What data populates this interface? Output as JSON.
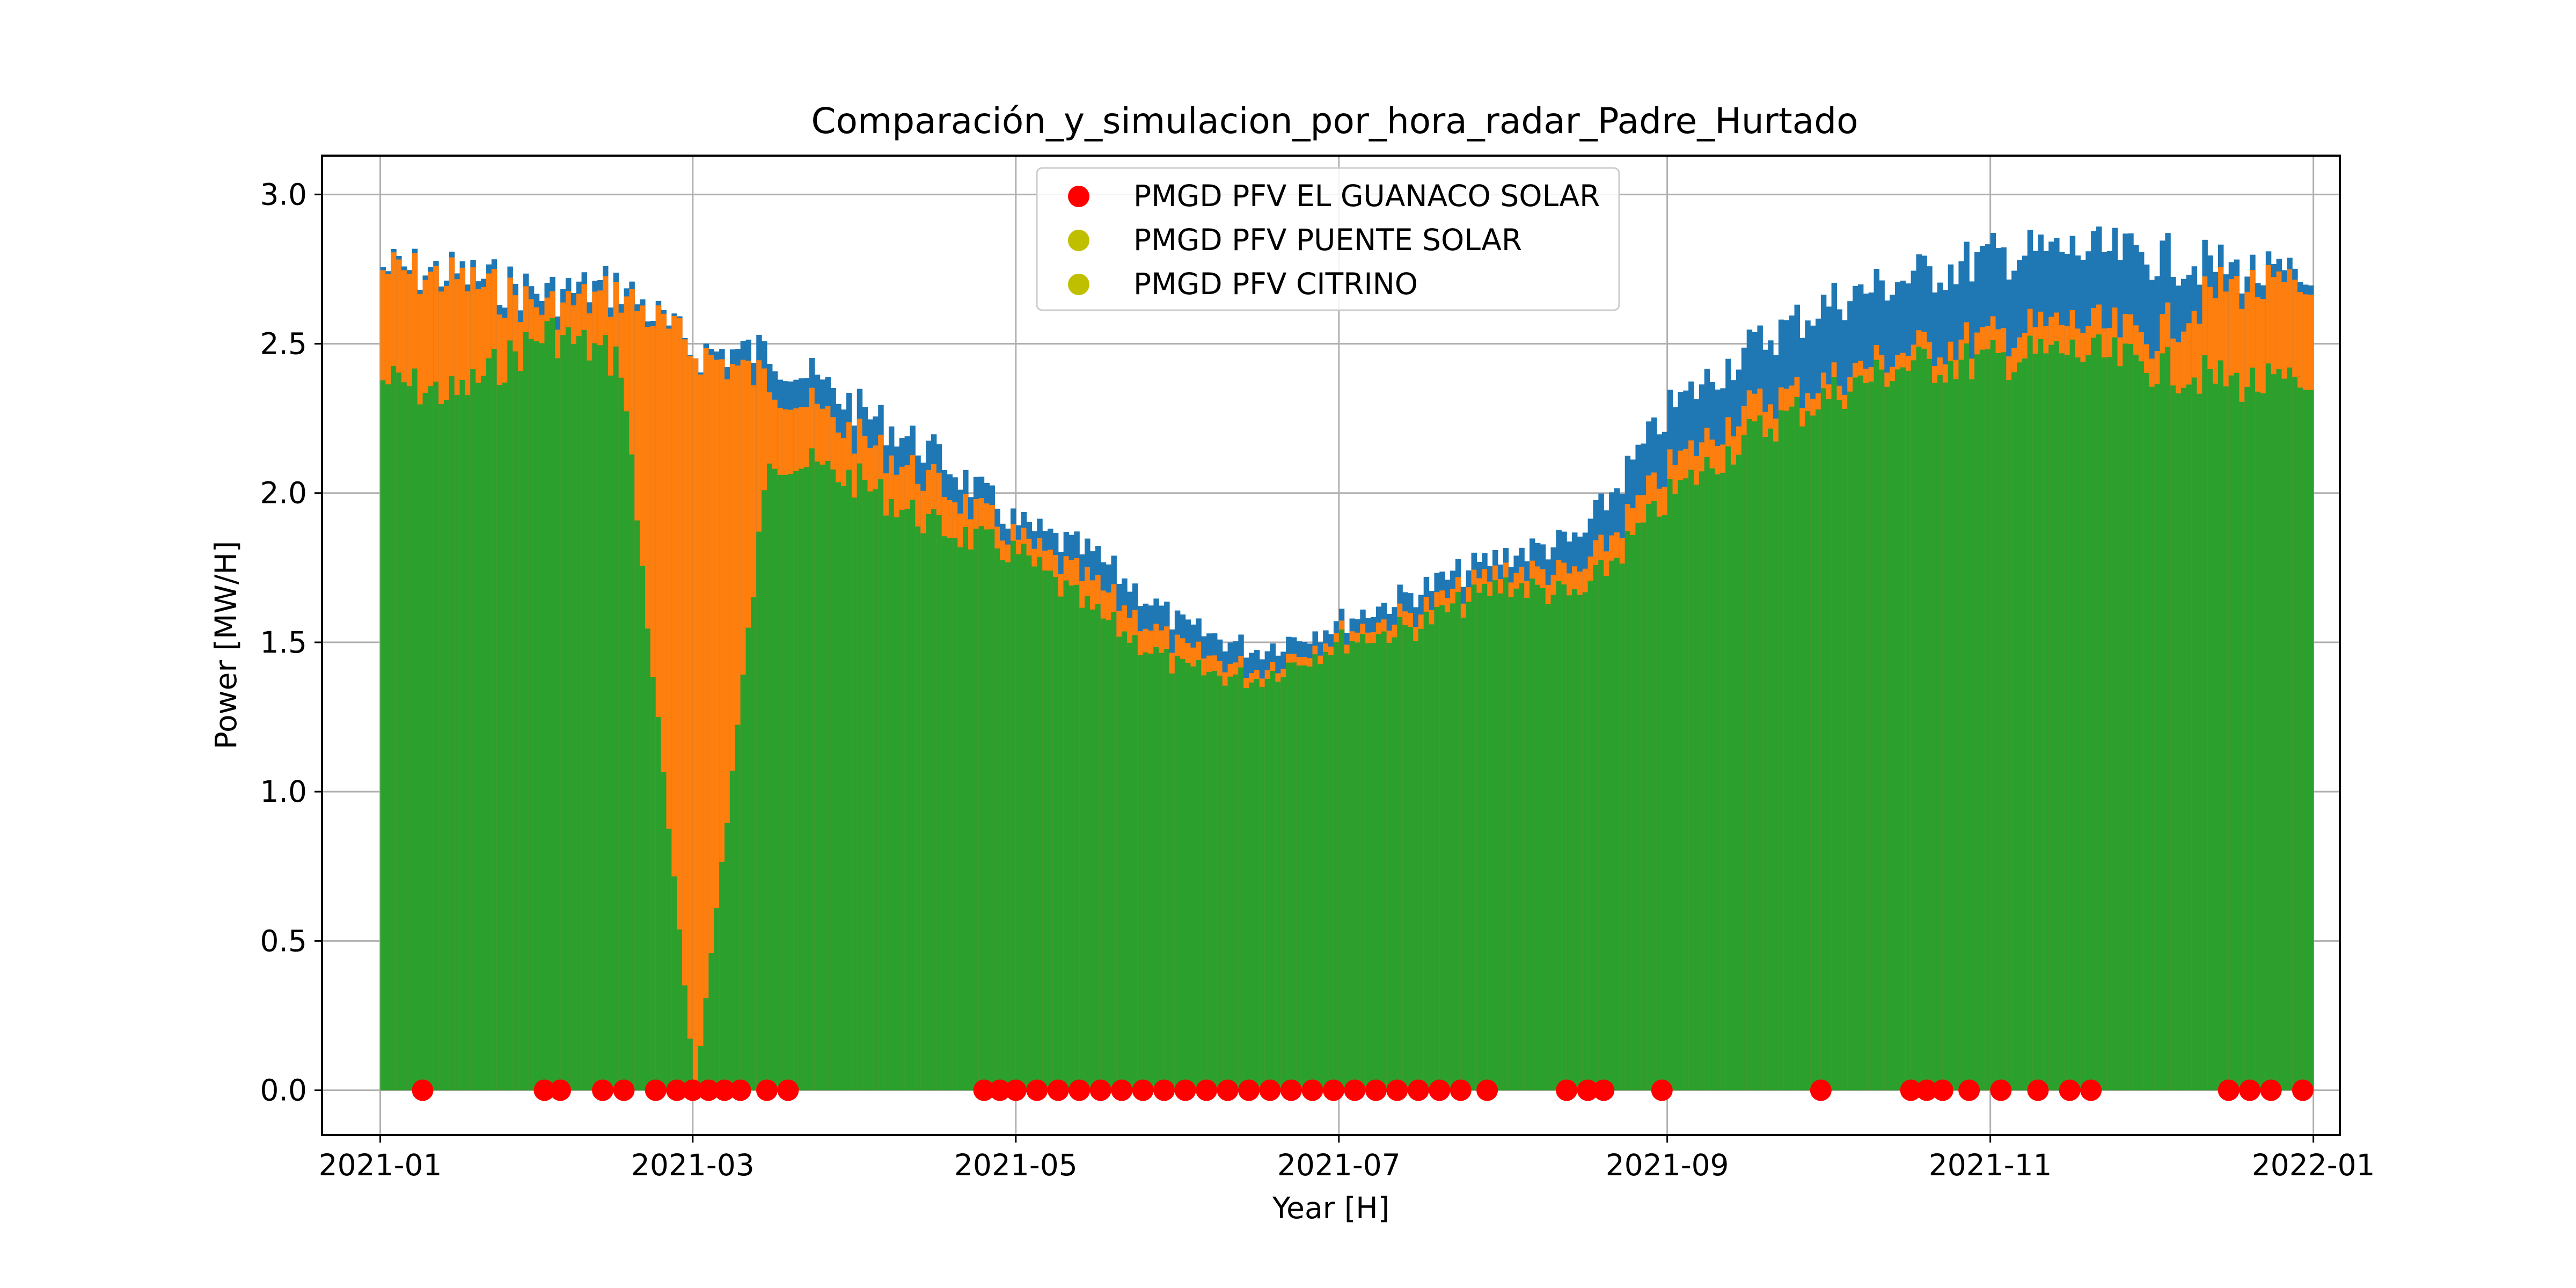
{
  "chart_data": {
    "type": "bar",
    "title": "Comparación_y_simulacion_por_hora_radar_Padre_Hurtado",
    "xlabel": "Year [H]",
    "ylabel": "Power [MW/H]",
    "xlim": [
      "2020-12-21",
      "2022-01-06"
    ],
    "ylim": [
      -0.15,
      3.13
    ],
    "x_ticks": [
      "2021-01",
      "2021-03",
      "2021-05",
      "2021-07",
      "2021-09",
      "2021-11",
      "2022-01"
    ],
    "y_ticks": [
      "0.0",
      "0.5",
      "1.0",
      "1.5",
      "2.0",
      "2.5",
      "3.0"
    ],
    "grid": true,
    "legend_placement": "upper center",
    "series": [
      {
        "name": "PMGD PFV EL GUANACO SOLAR",
        "kind": "scatter",
        "color": "#ff0000",
        "note_values": "hourly values; red markers visible only near 0.0 on visible dates",
        "points": [
          [
            "2021-01-09",
            0.0
          ],
          [
            "2021-02-01",
            0.0
          ],
          [
            "2021-02-04",
            0.0
          ],
          [
            "2021-02-12",
            0.0
          ],
          [
            "2021-02-16",
            0.0
          ],
          [
            "2021-02-22",
            0.0
          ],
          [
            "2021-02-26",
            0.0
          ],
          [
            "2021-03-01",
            0.0
          ],
          [
            "2021-03-04",
            0.0
          ],
          [
            "2021-03-07",
            0.0
          ],
          [
            "2021-03-10",
            0.0
          ],
          [
            "2021-03-15",
            0.0
          ],
          [
            "2021-03-19",
            0.0
          ],
          [
            "2021-04-25",
            0.0
          ],
          [
            "2021-04-28",
            0.0
          ],
          [
            "2021-05-01",
            0.0
          ],
          [
            "2021-05-05",
            0.0
          ],
          [
            "2021-05-09",
            0.0
          ],
          [
            "2021-05-13",
            0.0
          ],
          [
            "2021-05-17",
            0.0
          ],
          [
            "2021-05-21",
            0.0
          ],
          [
            "2021-05-25",
            0.0
          ],
          [
            "2021-05-29",
            0.0
          ],
          [
            "2021-06-02",
            0.0
          ],
          [
            "2021-06-06",
            0.0
          ],
          [
            "2021-06-10",
            0.0
          ],
          [
            "2021-06-14",
            0.0
          ],
          [
            "2021-06-18",
            0.0
          ],
          [
            "2021-06-22",
            0.0
          ],
          [
            "2021-06-26",
            0.0
          ],
          [
            "2021-06-30",
            0.0
          ],
          [
            "2021-07-04",
            0.0
          ],
          [
            "2021-07-08",
            0.0
          ],
          [
            "2021-07-12",
            0.0
          ],
          [
            "2021-07-16",
            0.0
          ],
          [
            "2021-07-20",
            0.0
          ],
          [
            "2021-07-24",
            0.0
          ],
          [
            "2021-07-29",
            0.0
          ],
          [
            "2021-08-13",
            0.0
          ],
          [
            "2021-08-17",
            0.0
          ],
          [
            "2021-08-20",
            0.0
          ],
          [
            "2021-08-31",
            0.0
          ],
          [
            "2021-09-30",
            0.0
          ],
          [
            "2021-10-17",
            0.0
          ],
          [
            "2021-10-20",
            0.0
          ],
          [
            "2021-10-23",
            0.0
          ],
          [
            "2021-10-28",
            0.0
          ],
          [
            "2021-11-03",
            0.0
          ],
          [
            "2021-11-10",
            0.0
          ],
          [
            "2021-11-16",
            0.0
          ],
          [
            "2021-11-20",
            0.0
          ],
          [
            "2021-12-16",
            0.0
          ],
          [
            "2021-12-20",
            0.0
          ],
          [
            "2021-12-24",
            0.0
          ],
          [
            "2021-12-30",
            0.0
          ]
        ]
      },
      {
        "name": "PMGD PFV PUENTE SOLAR",
        "kind": "scatter",
        "color": "#bfbf00",
        "note_values": "hourly values rendered as dense stacked bars (blue/orange/green) in the original",
        "bar_color": "#1f77b4",
        "daily_peak_envelope": [
          [
            "2021-01-01",
            2.84
          ],
          [
            "2021-01-15",
            2.82
          ],
          [
            "2021-02-01",
            2.75
          ],
          [
            "2021-02-15",
            2.78
          ],
          [
            "2021-03-01",
            2.55
          ],
          [
            "2021-03-15",
            2.55
          ],
          [
            "2021-04-01",
            2.35
          ],
          [
            "2021-04-15",
            2.2
          ],
          [
            "2021-05-01",
            1.95
          ],
          [
            "2021-05-15",
            1.85
          ],
          [
            "2021-06-01",
            1.6
          ],
          [
            "2021-06-15",
            1.52
          ],
          [
            "2021-07-01",
            1.62
          ],
          [
            "2021-07-15",
            1.72
          ],
          [
            "2021-08-01",
            1.85
          ],
          [
            "2021-08-15",
            1.9
          ],
          [
            "2021-09-01",
            2.35
          ],
          [
            "2021-09-15",
            2.55
          ],
          [
            "2021-10-01",
            2.72
          ],
          [
            "2021-10-15",
            2.8
          ],
          [
            "2021-11-01",
            2.88
          ],
          [
            "2021-11-15",
            2.9
          ],
          [
            "2021-12-01",
            2.88
          ],
          [
            "2021-12-15",
            2.84
          ],
          [
            "2022-01-01",
            2.78
          ]
        ]
      },
      {
        "name": "PMGD PFV CITRINO",
        "kind": "scatter",
        "color": "#bfbf00",
        "bar_color_orange": "#ff7f0e",
        "bar_color_green": "#2ca02c",
        "daily_peak_envelope_orange": [
          [
            "2021-01-01",
            2.83
          ],
          [
            "2021-01-15",
            2.8
          ],
          [
            "2021-02-01",
            2.7
          ],
          [
            "2021-02-15",
            2.75
          ],
          [
            "2021-03-01",
            2.55
          ],
          [
            "2021-03-15",
            2.45
          ],
          [
            "2021-04-01",
            2.25
          ],
          [
            "2021-04-15",
            2.1
          ],
          [
            "2021-05-01",
            1.9
          ],
          [
            "2021-05-15",
            1.75
          ],
          [
            "2021-06-01",
            1.52
          ],
          [
            "2021-06-15",
            1.45
          ],
          [
            "2021-07-01",
            1.58
          ],
          [
            "2021-07-15",
            1.65
          ],
          [
            "2021-08-01",
            1.8
          ],
          [
            "2021-08-15",
            1.78
          ],
          [
            "2021-09-01",
            2.15
          ],
          [
            "2021-09-15",
            2.35
          ],
          [
            "2021-10-01",
            2.45
          ],
          [
            "2021-10-15",
            2.55
          ],
          [
            "2021-11-01",
            2.6
          ],
          [
            "2021-11-15",
            2.65
          ],
          [
            "2021-12-01",
            2.6
          ],
          [
            "2021-12-15",
            2.78
          ],
          [
            "2022-01-01",
            2.75
          ]
        ],
        "daily_peak_envelope_green": [
          [
            "2021-01-01",
            2.45
          ],
          [
            "2021-01-15",
            2.4
          ],
          [
            "2021-02-01",
            2.62
          ],
          [
            "2021-02-15",
            2.52
          ],
          [
            "2021-03-01",
            0.0
          ],
          [
            "2021-03-15",
            2.2
          ],
          [
            "2021-04-01",
            2.1
          ],
          [
            "2021-04-15",
            1.95
          ],
          [
            "2021-05-01",
            1.85
          ],
          [
            "2021-05-15",
            1.65
          ],
          [
            "2021-06-01",
            1.45
          ],
          [
            "2021-06-15",
            1.42
          ],
          [
            "2021-07-01",
            1.55
          ],
          [
            "2021-07-15",
            1.6
          ],
          [
            "2021-08-01",
            1.75
          ],
          [
            "2021-08-15",
            1.7
          ],
          [
            "2021-09-01",
            2.05
          ],
          [
            "2021-09-15",
            2.25
          ],
          [
            "2021-10-01",
            2.4
          ],
          [
            "2021-10-15",
            2.5
          ],
          [
            "2021-11-01",
            2.52
          ],
          [
            "2021-11-15",
            2.55
          ],
          [
            "2021-12-01",
            2.5
          ],
          [
            "2021-12-15",
            2.45
          ],
          [
            "2022-01-01",
            2.42
          ]
        ]
      }
    ]
  }
}
